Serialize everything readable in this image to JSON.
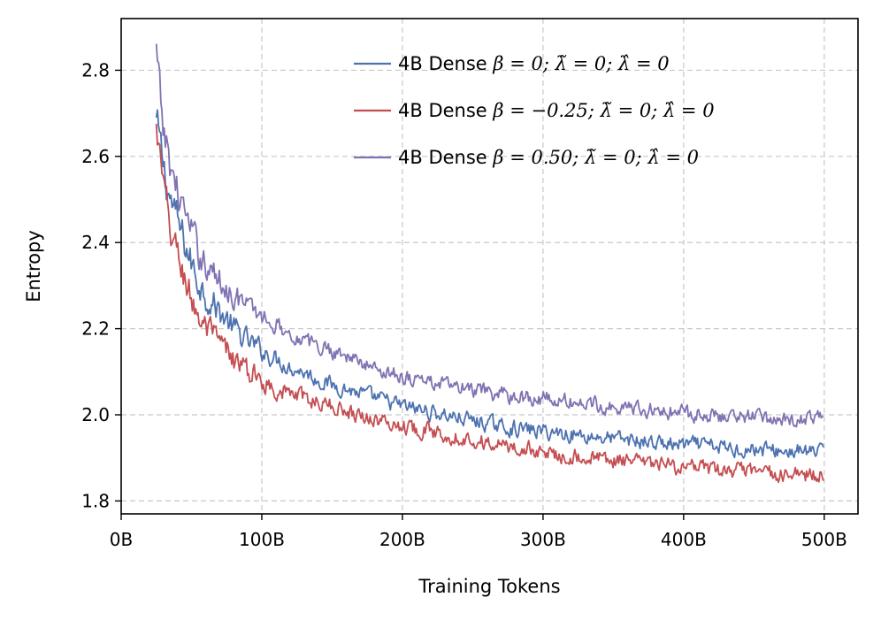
{
  "chart_data": {
    "type": "line",
    "xlabel": "Training Tokens",
    "ylabel": "Entropy",
    "xlim": [
      0,
      524
    ],
    "ylim": [
      1.77,
      2.92
    ],
    "x_ticks": [
      0,
      100,
      200,
      300,
      400,
      500
    ],
    "x_tick_labels": [
      "0B",
      "100B",
      "200B",
      "300B",
      "400B",
      "500B"
    ],
    "y_ticks": [
      1.8,
      2.0,
      2.2,
      2.4,
      2.6,
      2.8
    ],
    "y_tick_labels": [
      "1.8",
      "2.0",
      "2.2",
      "2.4",
      "2.6",
      "2.8"
    ],
    "grid": true,
    "legend_position": "top-right",
    "series": [
      {
        "name": "4B Dense β=0; λ̃=0; λ̂=0",
        "legend_prefix": "4B Dense",
        "legend_math": "β = 0;  λ̃ = 0;  λ̂ = 0",
        "color": "#4c72b0",
        "x": [
          25,
          28,
          31,
          35,
          40,
          45,
          50,
          55,
          60,
          70,
          80,
          90,
          100,
          110,
          120,
          130,
          140,
          150,
          160,
          170,
          180,
          190,
          200,
          215,
          230,
          245,
          260,
          275,
          290,
          305,
          320,
          335,
          350,
          365,
          380,
          395,
          410,
          425,
          440,
          455,
          470,
          485,
          500
        ],
        "values": [
          2.68,
          2.62,
          2.56,
          2.5,
          2.45,
          2.4,
          2.35,
          2.31,
          2.28,
          2.24,
          2.2,
          2.17,
          2.15,
          2.13,
          2.11,
          2.1,
          2.08,
          2.07,
          2.06,
          2.05,
          2.04,
          2.03,
          2.02,
          2.01,
          2.0,
          1.99,
          1.98,
          1.97,
          1.965,
          1.96,
          1.955,
          1.95,
          1.945,
          1.94,
          1.935,
          1.93,
          1.93,
          1.925,
          1.92,
          1.92,
          1.915,
          1.915,
          1.91
        ]
      },
      {
        "name": "4B Dense β=−0.25; λ̃=0; λ̂=0",
        "legend_prefix": "4B Dense",
        "legend_math": "β = −0.25;  λ̃ = 0;  λ̂ = 0",
        "color": "#c44e52",
        "x": [
          25,
          28,
          31,
          35,
          40,
          45,
          50,
          55,
          60,
          70,
          80,
          90,
          100,
          110,
          120,
          130,
          140,
          150,
          160,
          170,
          180,
          190,
          200,
          215,
          230,
          245,
          260,
          275,
          290,
          305,
          320,
          335,
          350,
          365,
          380,
          395,
          410,
          425,
          440,
          455,
          470,
          485,
          500
        ],
        "values": [
          2.66,
          2.58,
          2.5,
          2.43,
          2.37,
          2.32,
          2.27,
          2.23,
          2.2,
          2.16,
          2.13,
          2.1,
          2.08,
          2.06,
          2.05,
          2.04,
          2.03,
          2.02,
          2.01,
          2.0,
          1.99,
          1.98,
          1.975,
          1.965,
          1.955,
          1.945,
          1.935,
          1.925,
          1.92,
          1.91,
          1.905,
          1.9,
          1.895,
          1.89,
          1.885,
          1.88,
          1.875,
          1.87,
          1.87,
          1.865,
          1.86,
          1.86,
          1.86
        ]
      },
      {
        "name": "4B Dense β=0.50; λ̃=0; λ̂=0",
        "legend_prefix": "4B Dense",
        "legend_math": "β = 0.50;  λ̃ = 0;  λ̂ = 0",
        "color": "#8172b2",
        "x": [
          25,
          28,
          31,
          35,
          40,
          45,
          50,
          55,
          60,
          70,
          80,
          90,
          100,
          110,
          120,
          130,
          140,
          150,
          160,
          170,
          180,
          190,
          200,
          215,
          230,
          245,
          260,
          275,
          290,
          305,
          320,
          335,
          350,
          365,
          380,
          395,
          410,
          425,
          440,
          455,
          470,
          485,
          500
        ],
        "values": [
          2.84,
          2.72,
          2.64,
          2.58,
          2.52,
          2.47,
          2.42,
          2.38,
          2.35,
          2.31,
          2.28,
          2.25,
          2.23,
          2.21,
          2.19,
          2.17,
          2.16,
          2.15,
          2.14,
          2.12,
          2.11,
          2.1,
          2.09,
          2.08,
          2.07,
          2.06,
          2.05,
          2.045,
          2.04,
          2.035,
          2.03,
          2.025,
          2.02,
          2.015,
          2.01,
          2.005,
          2.0,
          2.0,
          1.995,
          1.995,
          1.99,
          1.99,
          1.99
        ]
      }
    ]
  }
}
